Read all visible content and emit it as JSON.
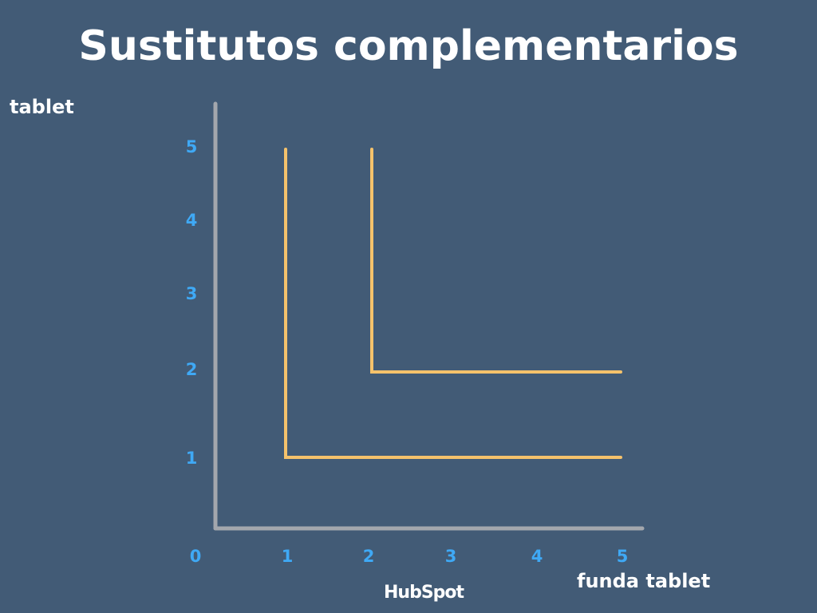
{
  "chart_data": {
    "type": "line",
    "title": "Sustitutos complementarios",
    "xlabel": "funda tablet",
    "ylabel": "tablet",
    "x_ticks": [
      "0",
      "1",
      "2",
      "3",
      "4",
      "5"
    ],
    "y_ticks": [
      "1",
      "2",
      "3",
      "4",
      "5"
    ],
    "xlim": [
      0,
      5
    ],
    "ylim": [
      0,
      5
    ],
    "grid": false,
    "series": [
      {
        "points": [
          [
            1,
            5
          ],
          [
            1,
            1
          ],
          [
            5,
            1
          ]
        ]
      },
      {
        "points": [
          [
            2,
            5
          ],
          [
            2,
            2
          ],
          [
            5,
            2
          ]
        ]
      }
    ],
    "colors": {
      "background": "#425b76",
      "axis": "#a3a7ad",
      "line": "#f5c26b",
      "tick": "#3fa9f5"
    }
  },
  "branding": {
    "logo": "HubSpot"
  }
}
